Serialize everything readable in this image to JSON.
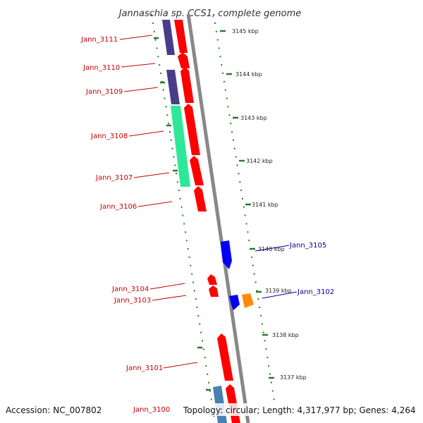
{
  "title": "Jannaschia sp. CCS1, complete genome",
  "footer": {
    "accession": "Accession: NC_007802",
    "topology": "Topology: circular; Length: 4,317,977 bp; Genes: 4,264"
  },
  "colors": {
    "red_label": "#cc0000",
    "blue_label": "#000099",
    "backbone": "#888888",
    "tick": "#2a7a2a",
    "gene_red": "#ff0000",
    "gene_purple": "#483d8b",
    "gene_green": "#2ee89a",
    "gene_blue": "#0000ff",
    "gene_orange": "#ff8c00",
    "gene_steel": "#4682b4"
  },
  "scale_labels": [
    {
      "text": "3145 kbp"
    },
    {
      "text": "3144 kbp"
    },
    {
      "text": "3143 kbp"
    },
    {
      "text": "3142 kbp"
    },
    {
      "text": "3141 kbp"
    },
    {
      "text": "3140 kbp"
    },
    {
      "text": "3139 kbp"
    },
    {
      "text": "3138 kbp"
    },
    {
      "text": "3137 kbp"
    }
  ],
  "gene_labels": [
    {
      "text": "Jann_3111",
      "color": "red"
    },
    {
      "text": "Jann_3110",
      "color": "red"
    },
    {
      "text": "Jann_3109",
      "color": "red"
    },
    {
      "text": "Jann_3108",
      "color": "red"
    },
    {
      "text": "Jann_3107",
      "color": "red"
    },
    {
      "text": "Jann_3106",
      "color": "red"
    },
    {
      "text": "Jann_3105",
      "color": "blue"
    },
    {
      "text": "Jann_3104",
      "color": "red"
    },
    {
      "text": "Jann_3103",
      "color": "red"
    },
    {
      "text": "Jann_3102",
      "color": "blue"
    },
    {
      "text": "Jann_3101",
      "color": "red"
    },
    {
      "text": "Jann_3100",
      "color": "red"
    }
  ]
}
